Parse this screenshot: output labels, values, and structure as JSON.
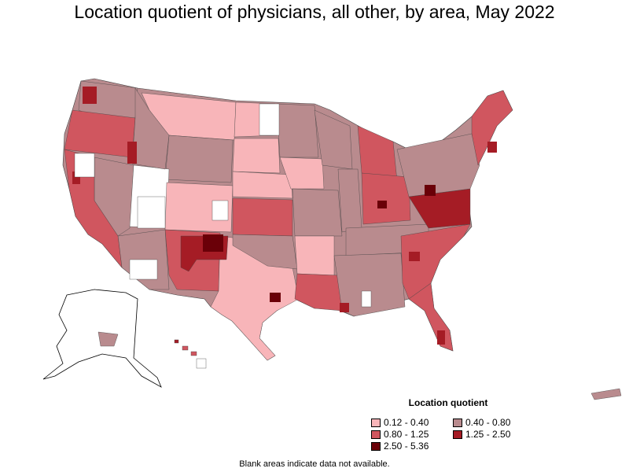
{
  "title": "Location quotient of physicians, all other, by area, May 2022",
  "legend": {
    "title": "Location quotient",
    "items": [
      {
        "label": "0.12 - 0.40",
        "color": "#f8b5b9"
      },
      {
        "label": "0.40 - 0.80",
        "color": "#b98b8e"
      },
      {
        "label": "0.80 - 1.25",
        "color": "#d0565f"
      },
      {
        "label": "1.25 - 2.50",
        "color": "#a51c25"
      },
      {
        "label": "2.50 - 5.36",
        "color": "#6a0008"
      }
    ]
  },
  "footnote": "Blank areas indicate data not available.",
  "colors": {
    "low": "#f8b5b9",
    "mid_low": "#b98b8e",
    "mid": "#d0565f",
    "high": "#a51c25",
    "very_high": "#6a0008",
    "outline": "#000000"
  }
}
